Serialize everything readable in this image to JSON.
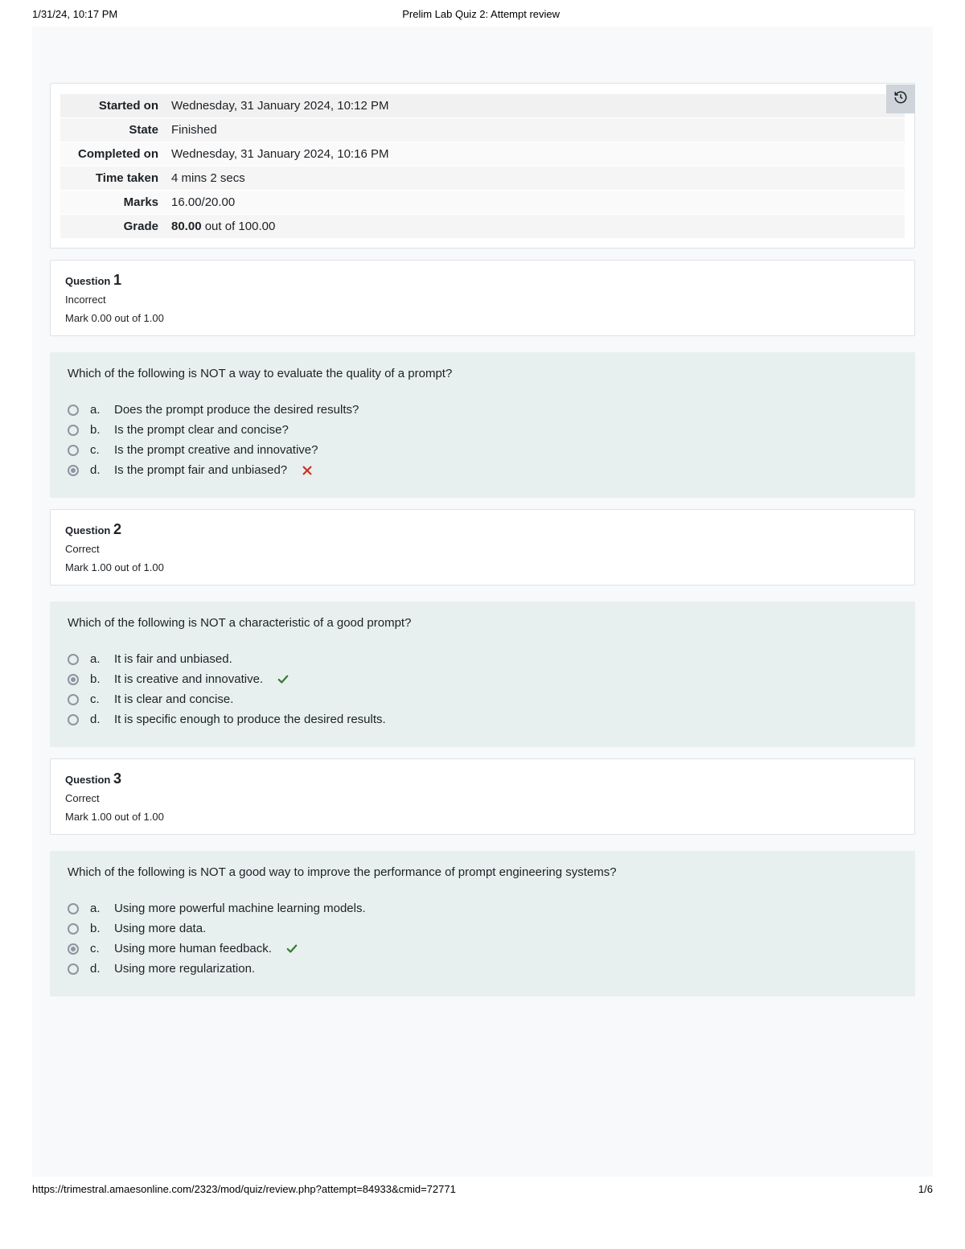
{
  "print_header": {
    "timestamp": "1/31/24, 10:17 PM",
    "title": "Prelim Lab Quiz 2: Attempt review"
  },
  "summary": {
    "rows": [
      {
        "label": "Started on",
        "value": "Wednesday, 31 January 2024, 10:12 PM"
      },
      {
        "label": "State",
        "value": "Finished"
      },
      {
        "label": "Completed on",
        "value": "Wednesday, 31 January 2024, 10:16 PM"
      },
      {
        "label": "Time taken",
        "value": "4 mins 2 secs"
      },
      {
        "label": "Marks",
        "value": "16.00/20.00"
      }
    ],
    "grade_label": "Grade",
    "grade_bold": "80.00",
    "grade_rest": " out of 100.00"
  },
  "questions": [
    {
      "label": "Question",
      "number": "1",
      "status": "Incorrect",
      "mark": "Mark 0.00 out of 1.00",
      "text": "Which of the following is NOT a way to evaluate the quality of a prompt?",
      "answers": [
        {
          "letter": "a.",
          "text": "Does the prompt produce the desired results?",
          "selected": false,
          "icon": null
        },
        {
          "letter": "b.",
          "text": "Is the prompt clear and concise?",
          "selected": false,
          "icon": null
        },
        {
          "letter": "c.",
          "text": "Is the prompt creative and innovative?",
          "selected": false,
          "icon": null
        },
        {
          "letter": "d.",
          "text": "Is the prompt fair and unbiased?",
          "selected": true,
          "icon": "cross"
        }
      ]
    },
    {
      "label": "Question",
      "number": "2",
      "status": "Correct",
      "mark": "Mark 1.00 out of 1.00",
      "text": "Which of the following is NOT a characteristic of a good prompt?",
      "answers": [
        {
          "letter": "a.",
          "text": "It is fair and unbiased.",
          "selected": false,
          "icon": null
        },
        {
          "letter": "b.",
          "text": "It is creative and innovative.",
          "selected": true,
          "icon": "check"
        },
        {
          "letter": "c.",
          "text": "It is clear and concise.",
          "selected": false,
          "icon": null
        },
        {
          "letter": "d.",
          "text": "It is specific enough to produce the desired results.",
          "selected": false,
          "icon": null
        }
      ]
    },
    {
      "label": "Question",
      "number": "3",
      "status": "Correct",
      "mark": "Mark 1.00 out of 1.00",
      "text": "Which of the following is NOT a good way to improve the performance of prompt engineering systems?",
      "answers": [
        {
          "letter": "a.",
          "text": "Using more powerful machine learning models.",
          "selected": false,
          "icon": null
        },
        {
          "letter": "b.",
          "text": "Using more data.",
          "selected": false,
          "icon": null
        },
        {
          "letter": "c.",
          "text": "Using more human feedback.",
          "selected": true,
          "icon": "check"
        },
        {
          "letter": "d.",
          "text": "Using more regularization.",
          "selected": false,
          "icon": null
        }
      ]
    }
  ],
  "print_footer": {
    "url": "https://trimestral.amaesonline.com/2323/mod/quiz/review.php?attempt=84933&cmid=72771",
    "page": "1/6"
  }
}
